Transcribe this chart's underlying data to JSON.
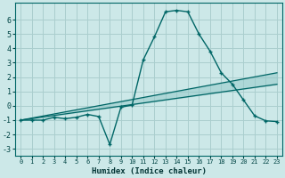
{
  "xlabel": "Humidex (Indice chaleur)",
  "background_color": "#cce8e8",
  "grid_color": "#aacece",
  "line_color": "#006666",
  "fill_color": "#90c8c8",
  "xlim": [
    -0.5,
    23.5
  ],
  "ylim": [
    -3.5,
    7.2
  ],
  "yticks": [
    -3,
    -2,
    -1,
    0,
    1,
    2,
    3,
    4,
    5,
    6
  ],
  "xticks": [
    0,
    1,
    2,
    3,
    4,
    5,
    6,
    7,
    8,
    9,
    10,
    11,
    12,
    13,
    14,
    15,
    16,
    17,
    18,
    19,
    20,
    21,
    22,
    23
  ],
  "curve1_x": [
    0,
    1,
    2,
    3,
    4,
    5,
    6,
    7,
    8,
    9,
    10,
    11,
    12,
    13,
    14,
    15,
    16,
    17,
    18,
    19,
    20,
    21,
    22,
    23
  ],
  "curve1_y": [
    -1.0,
    -1.0,
    -1.0,
    -0.8,
    -0.9,
    -0.8,
    -0.6,
    -0.75,
    -2.7,
    -0.1,
    0.05,
    3.2,
    4.8,
    6.55,
    6.65,
    6.55,
    5.0,
    3.8,
    2.3,
    1.5,
    0.4,
    -0.7,
    -1.05,
    -1.1
  ],
  "line1_x": [
    0,
    23
  ],
  "line1_y": [
    -1.0,
    2.3
  ],
  "line2_x": [
    0,
    23
  ],
  "line2_y": [
    -1.0,
    1.5
  ],
  "marker": "+"
}
